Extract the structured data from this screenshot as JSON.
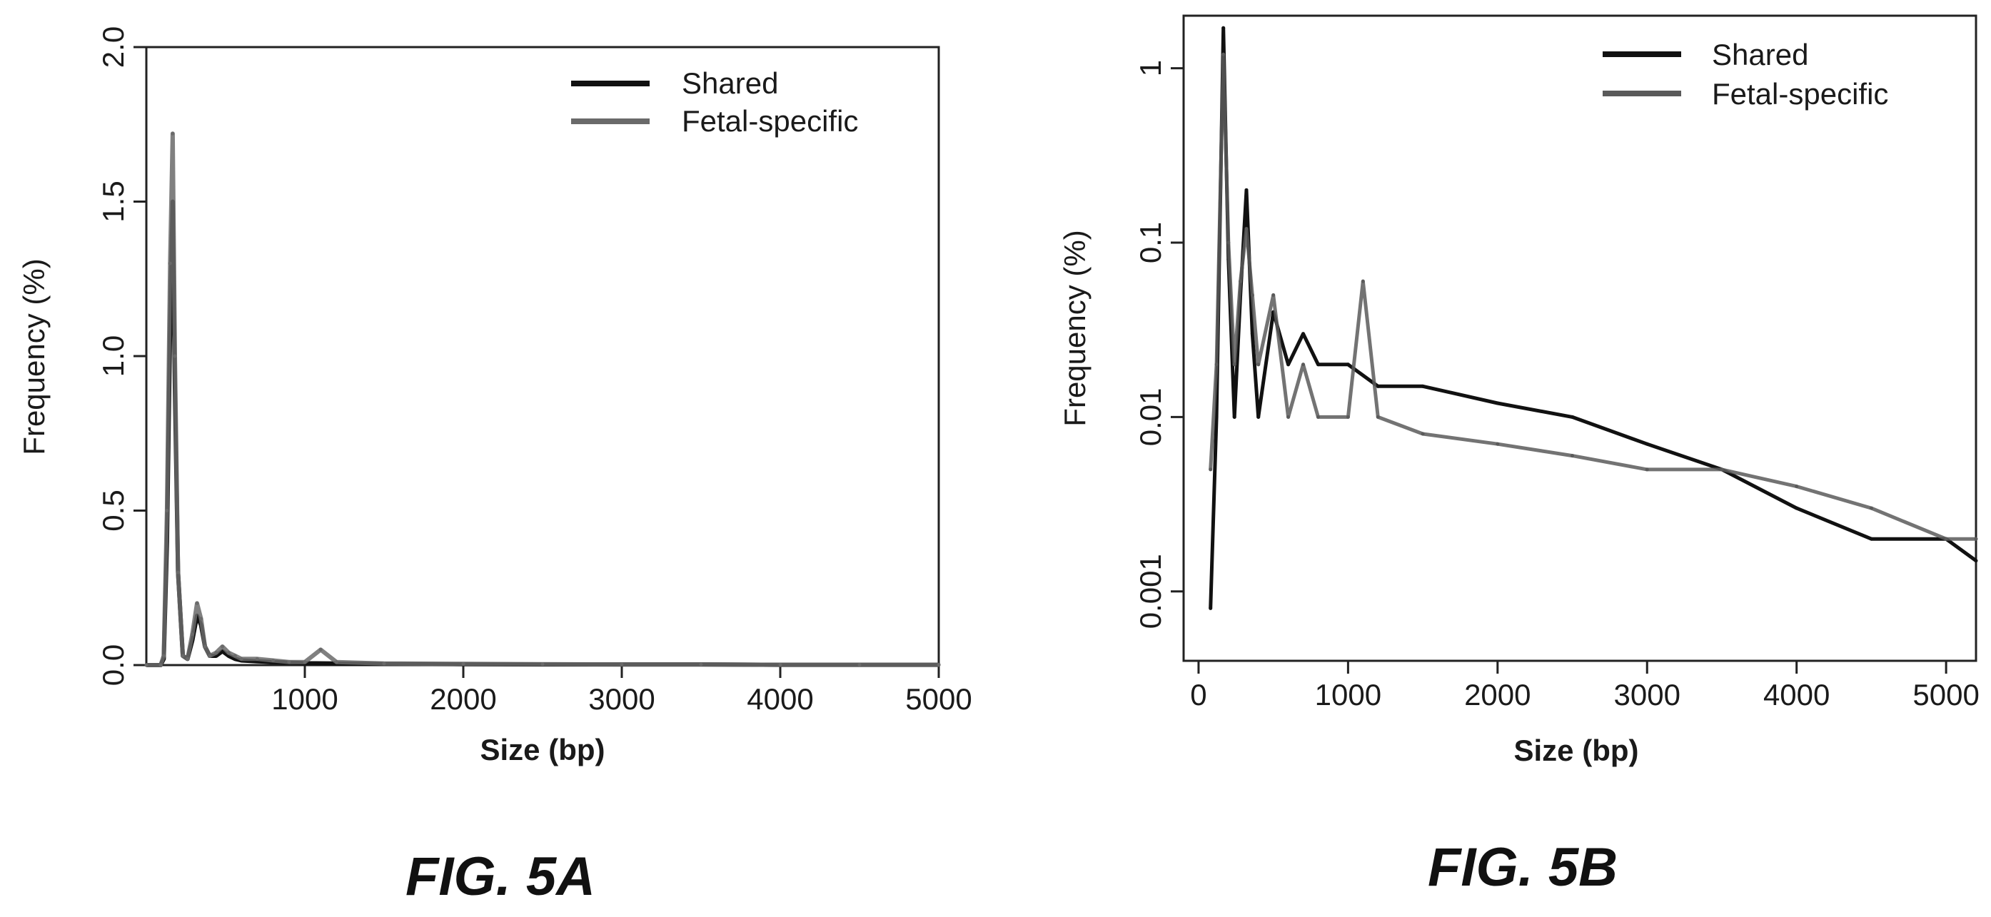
{
  "captions": {
    "a": "FIG. 5A",
    "b": "FIG. 5B"
  },
  "chart_data": [
    {
      "type": "line",
      "panel": "5A",
      "title": "",
      "xlabel": "Size (bp)",
      "ylabel": "Frequency (%)",
      "xlim": [
        0,
        5000
      ],
      "ylim": [
        0,
        2.0
      ],
      "y_scale": "linear",
      "xticks": [
        {
          "value": 1000,
          "label": "1000"
        },
        {
          "value": 2000,
          "label": "2000"
        },
        {
          "value": 3000,
          "label": "3000"
        },
        {
          "value": 4000,
          "label": "4000"
        },
        {
          "value": 5000,
          "label": "5000"
        }
      ],
      "yticks": [
        {
          "value": 0.0,
          "label": "0.0"
        },
        {
          "value": 0.5,
          "label": "0.5"
        },
        {
          "value": 1.0,
          "label": "1.0"
        },
        {
          "value": 1.5,
          "label": "1.5"
        },
        {
          "value": 2.0,
          "label": "2.0"
        }
      ],
      "legend_position": "top-right",
      "series": [
        {
          "name": "Shared",
          "color": "#111111",
          "x": [
            0,
            90,
            110,
            130,
            150,
            166,
            180,
            200,
            230,
            260,
            290,
            320,
            345,
            370,
            400,
            440,
            480,
            520,
            560,
            600,
            700,
            800,
            900,
            1000,
            1200,
            1500,
            2000,
            2500,
            3000,
            3500,
            4000,
            4500,
            5000
          ],
          "y": [
            0,
            0,
            0.02,
            0.4,
            1.1,
            1.5,
            0.9,
            0.3,
            0.03,
            0.02,
            0.08,
            0.16,
            0.13,
            0.06,
            0.03,
            0.03,
            0.045,
            0.03,
            0.02,
            0.015,
            0.012,
            0.01,
            0.008,
            0.006,
            0.005,
            0.004,
            0.003,
            0.002,
            0.002,
            0.002,
            0.001,
            0.001,
            0.001
          ]
        },
        {
          "name": "Fetal-specific",
          "color": "#6a6a6a",
          "x": [
            0,
            90,
            110,
            130,
            150,
            166,
            180,
            200,
            230,
            260,
            290,
            320,
            345,
            370,
            400,
            440,
            480,
            520,
            560,
            600,
            700,
            800,
            900,
            1000,
            1100,
            1200,
            1500,
            2000,
            2500,
            3000,
            3500,
            4000,
            4500,
            5000
          ],
          "y": [
            0,
            0,
            0.03,
            0.5,
            1.3,
            1.72,
            1.0,
            0.3,
            0.03,
            0.02,
            0.1,
            0.2,
            0.15,
            0.06,
            0.03,
            0.04,
            0.06,
            0.04,
            0.03,
            0.02,
            0.02,
            0.015,
            0.01,
            0.01,
            0.05,
            0.01,
            0.005,
            0.004,
            0.003,
            0.002,
            0.002,
            0.001,
            0.001,
            0.001
          ]
        }
      ]
    },
    {
      "type": "line",
      "panel": "5B",
      "title": "",
      "xlabel": "Size (bp)",
      "ylabel": "Frequency (%)",
      "xlim": [
        -100,
        5200
      ],
      "ylim": [
        0.0004,
        2.0
      ],
      "y_scale": "log",
      "xticks": [
        {
          "value": 0,
          "label": "0"
        },
        {
          "value": 1000,
          "label": "1000"
        },
        {
          "value": 2000,
          "label": "2000"
        },
        {
          "value": 3000,
          "label": "3000"
        },
        {
          "value": 4000,
          "label": "4000"
        },
        {
          "value": 5000,
          "label": "5000"
        }
      ],
      "yticks": [
        {
          "value": 0.001,
          "label": "0.001"
        },
        {
          "value": 0.01,
          "label": "0.01"
        },
        {
          "value": 0.1,
          "label": "0.1"
        },
        {
          "value": 1,
          "label": "1"
        }
      ],
      "legend_position": "top-right",
      "series": [
        {
          "name": "Shared",
          "color": "#111111",
          "x": [
            80,
            120,
            166,
            200,
            240,
            280,
            320,
            360,
            400,
            500,
            600,
            700,
            800,
            1000,
            1200,
            1500,
            2000,
            2500,
            3000,
            3500,
            4000,
            4500,
            5000,
            5200
          ],
          "y": [
            0.0008,
            0.01,
            1.7,
            0.08,
            0.01,
            0.05,
            0.2,
            0.03,
            0.01,
            0.04,
            0.02,
            0.03,
            0.02,
            0.02,
            0.015,
            0.015,
            0.012,
            0.01,
            0.007,
            0.005,
            0.003,
            0.002,
            0.002,
            0.0015
          ]
        },
        {
          "name": "Fetal-specific",
          "color": "#5a5a5a",
          "x": [
            80,
            120,
            166,
            200,
            240,
            280,
            320,
            360,
            400,
            500,
            600,
            700,
            800,
            1000,
            1100,
            1200,
            1500,
            2000,
            2500,
            3000,
            3500,
            4000,
            4500,
            5000,
            5200
          ],
          "y": [
            0.005,
            0.02,
            1.2,
            0.1,
            0.02,
            0.06,
            0.12,
            0.05,
            0.02,
            0.05,
            0.01,
            0.02,
            0.01,
            0.01,
            0.06,
            0.01,
            0.008,
            0.007,
            0.006,
            0.005,
            0.005,
            0.004,
            0.003,
            0.002,
            0.002
          ]
        }
      ]
    }
  ]
}
